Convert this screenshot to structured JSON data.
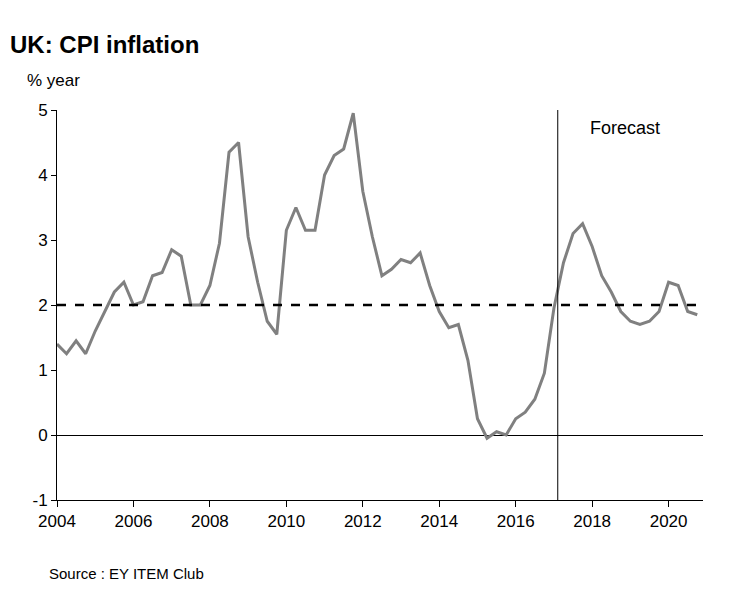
{
  "chart_data": {
    "type": "line",
    "title": "UK: CPI inflation",
    "ylabel": "% year",
    "source": "Source : EY ITEM Club",
    "x": [
      2004,
      2004.25,
      2004.5,
      2004.75,
      2005,
      2005.25,
      2005.5,
      2005.75,
      2006,
      2006.25,
      2006.5,
      2006.75,
      2007,
      2007.25,
      2007.5,
      2007.75,
      2008,
      2008.25,
      2008.5,
      2008.75,
      2009,
      2009.25,
      2009.5,
      2009.75,
      2010,
      2010.25,
      2010.5,
      2010.75,
      2011,
      2011.25,
      2011.5,
      2011.75,
      2012,
      2012.25,
      2012.5,
      2012.75,
      2013,
      2013.25,
      2013.5,
      2013.75,
      2014,
      2014.25,
      2014.5,
      2014.75,
      2015,
      2015.25,
      2015.5,
      2015.75,
      2016,
      2016.25,
      2016.5,
      2016.75,
      2017,
      2017.25,
      2017.5,
      2017.75,
      2018,
      2018.25,
      2018.5,
      2018.75,
      2019,
      2019.25,
      2019.5,
      2019.75,
      2020,
      2020.25,
      2020.5,
      2020.75
    ],
    "series": [
      {
        "color": "#808080",
        "line_style": "solid",
        "values": [
          1.4,
          1.25,
          1.45,
          1.25,
          1.6,
          1.9,
          2.2,
          2.35,
          2.0,
          2.05,
          2.45,
          2.5,
          2.85,
          2.75,
          2.0,
          2.0,
          2.3,
          2.95,
          4.35,
          4.5,
          3.05,
          2.35,
          1.75,
          1.55,
          3.15,
          3.5,
          3.15,
          3.15,
          4.0,
          4.3,
          4.4,
          4.95,
          3.75,
          3.05,
          2.45,
          2.55,
          2.7,
          2.65,
          2.8,
          2.3,
          1.9,
          1.65,
          1.7,
          1.15,
          0.25,
          -0.05,
          0.05,
          0.0,
          0.25,
          0.35,
          0.55,
          0.95,
          1.95,
          2.65,
          3.1,
          3.25,
          2.9,
          2.45,
          2.2,
          1.9,
          1.75,
          1.7,
          1.75,
          1.9,
          2.35,
          2.3,
          1.9,
          1.85
        ]
      },
      {
        "color": "#000000",
        "line_style": "dashed",
        "x": [
          2004,
          2020.9
        ],
        "values": [
          2,
          2
        ]
      }
    ],
    "annotations": [
      {
        "text": "Forecast",
        "x": 2017.1
      }
    ],
    "xlim": [
      2004,
      2020.9
    ],
    "xticks": [
      2004,
      2006,
      2008,
      2010,
      2012,
      2014,
      2016,
      2018,
      2020
    ],
    "ylim": [
      -1,
      5
    ],
    "yticks": [
      -1,
      0,
      1,
      2,
      3,
      4,
      5
    ],
    "grid": false
  }
}
